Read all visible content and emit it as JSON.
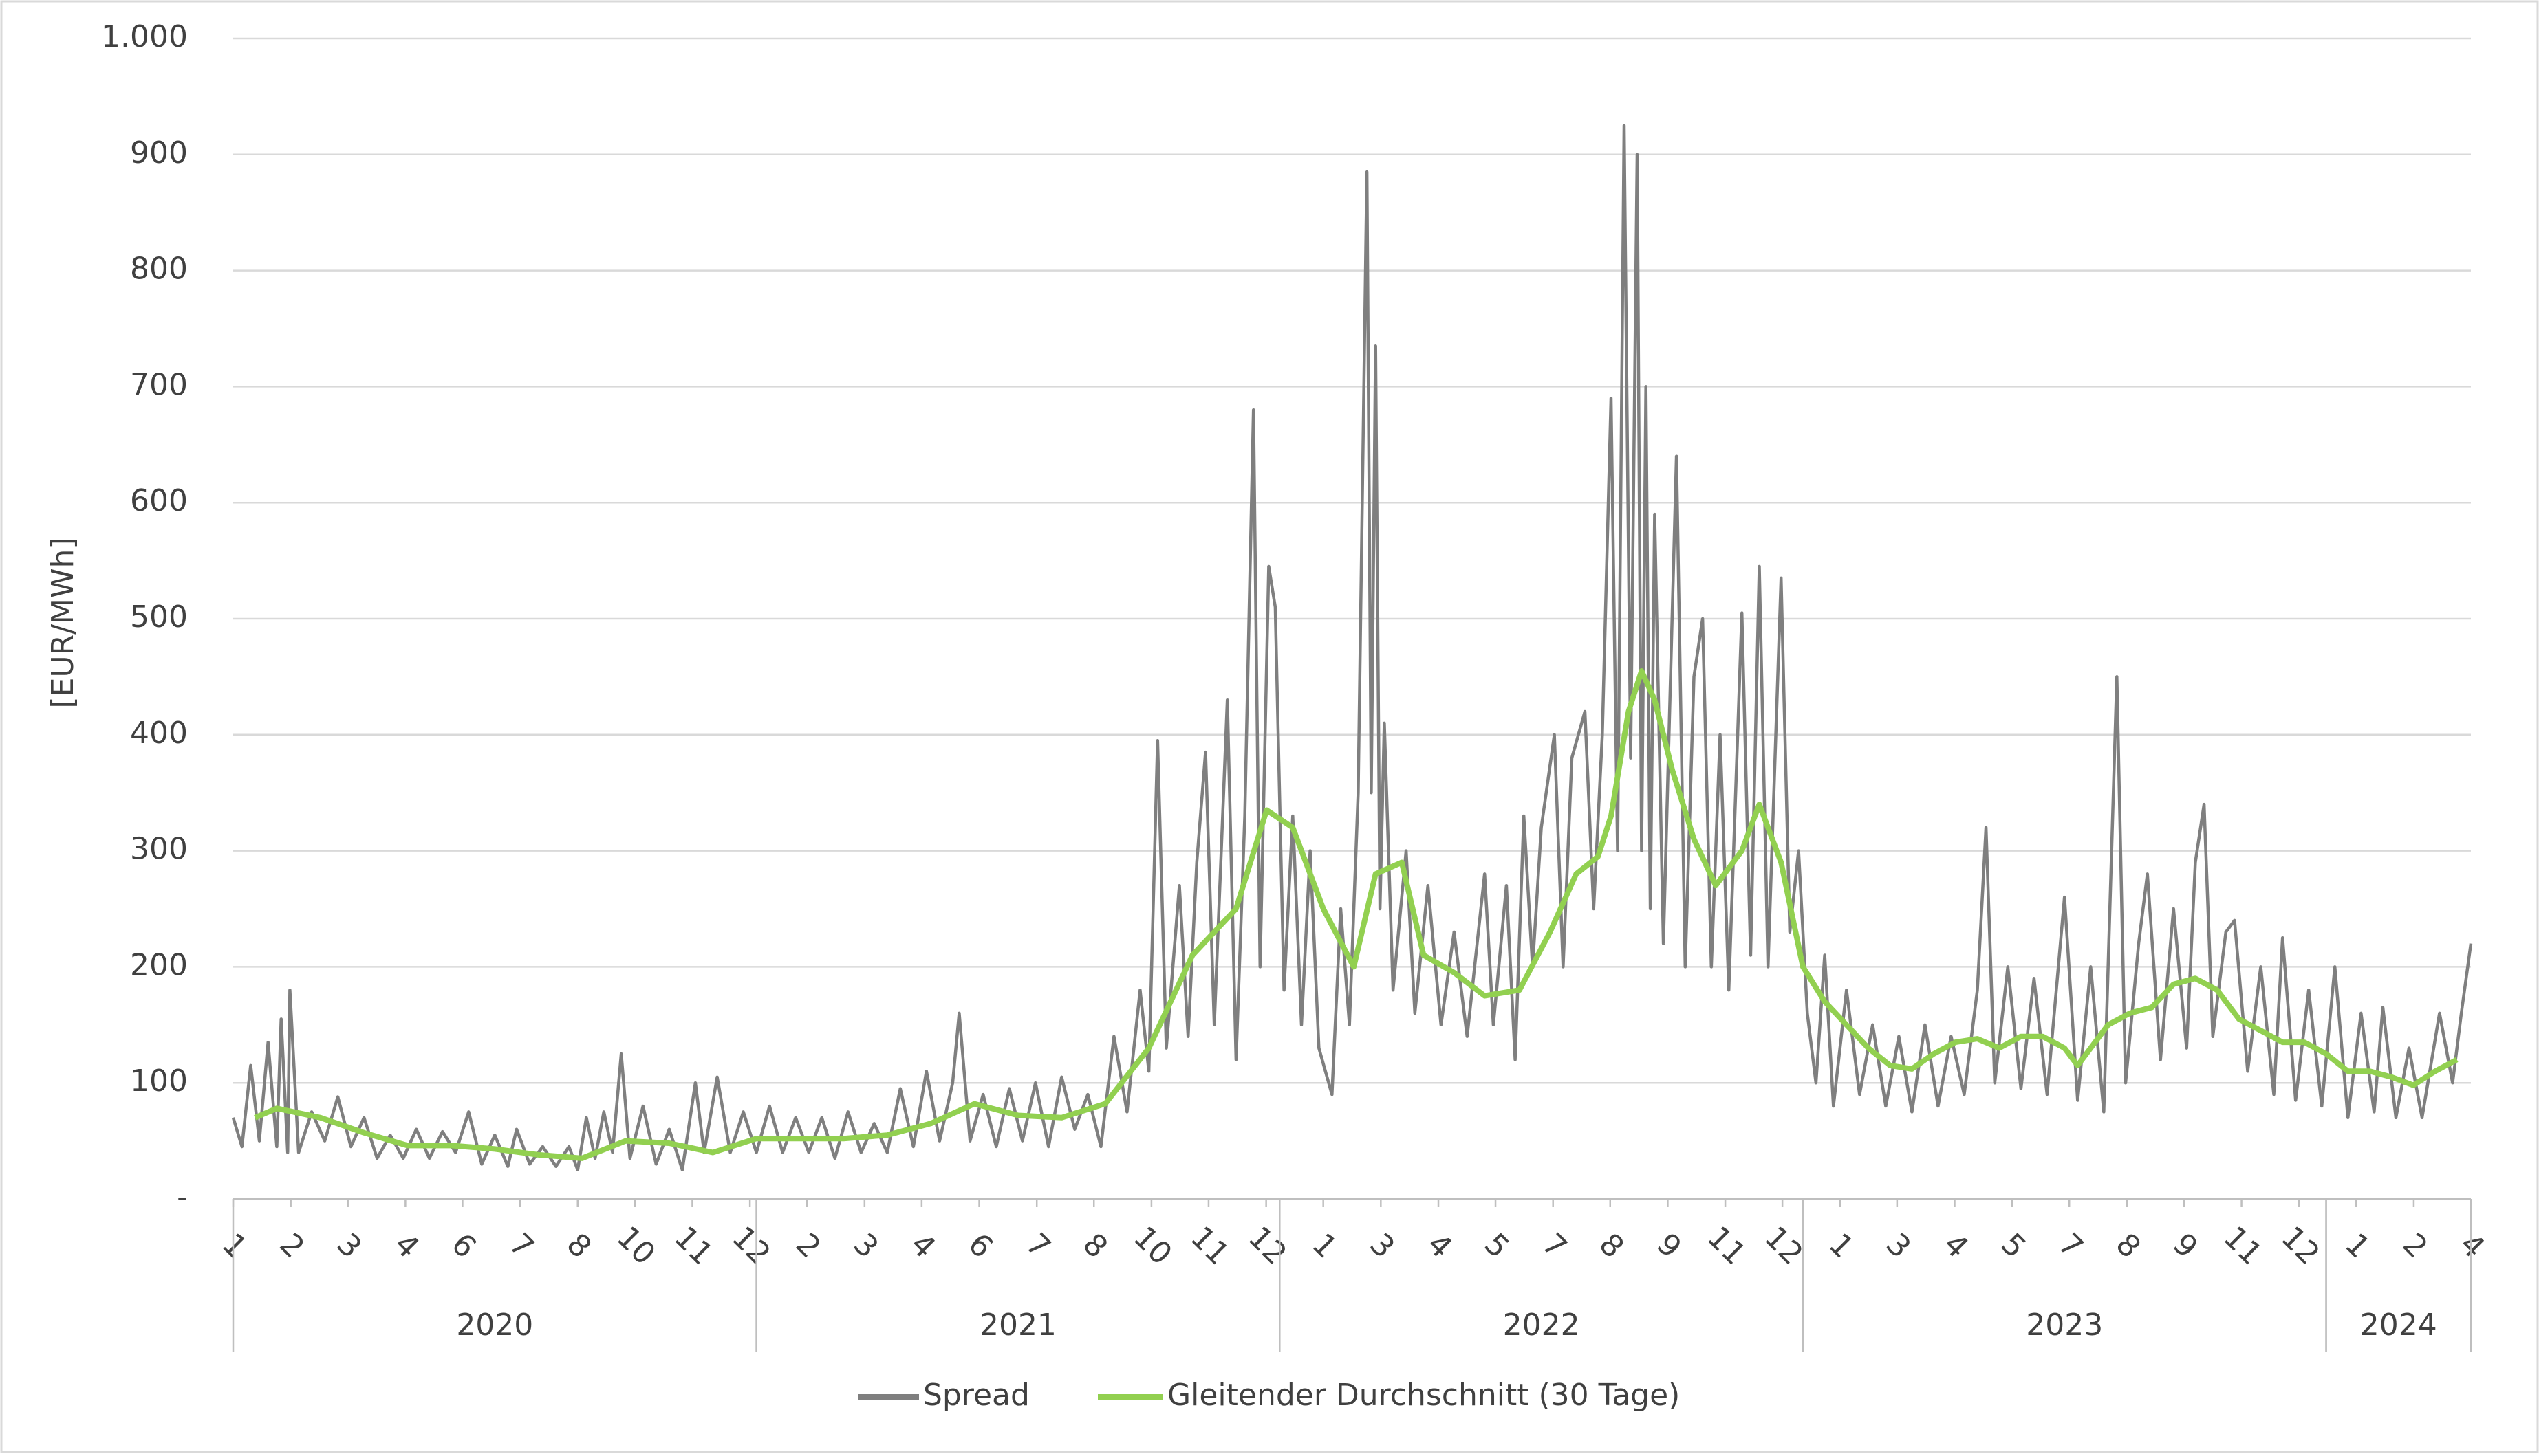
{
  "chart_data": {
    "type": "line",
    "y_label": "[EUR/MWh]",
    "ylim": [
      0,
      1000
    ],
    "yticks": [
      {
        "value": 0,
        "label": "-"
      },
      100,
      200,
      300,
      400,
      500,
      600,
      700,
      800,
      900,
      {
        "value": 1000,
        "label": "1.000"
      }
    ],
    "xlim": [
      0,
      51.32
    ],
    "xticks": [
      {
        "value": 0,
        "label": "1"
      },
      {
        "value": 1.32,
        "label": "2"
      },
      {
        "value": 2.63,
        "label": "3"
      },
      {
        "value": 3.95,
        "label": "4"
      },
      {
        "value": 5.26,
        "label": "6"
      },
      {
        "value": 6.58,
        "label": "7"
      },
      {
        "value": 7.9,
        "label": "8"
      },
      {
        "value": 9.21,
        "label": "10"
      },
      {
        "value": 10.53,
        "label": "11"
      },
      {
        "value": 11.85,
        "label": "12"
      },
      {
        "value": 13.16,
        "label": "2"
      },
      {
        "value": 14.48,
        "label": "3"
      },
      {
        "value": 15.79,
        "label": "4"
      },
      {
        "value": 17.11,
        "label": "6"
      },
      {
        "value": 18.43,
        "label": "7"
      },
      {
        "value": 19.74,
        "label": "8"
      },
      {
        "value": 21.06,
        "label": "10"
      },
      {
        "value": 22.37,
        "label": "11"
      },
      {
        "value": 23.69,
        "label": "12"
      },
      {
        "value": 25,
        "label": "1"
      },
      {
        "value": 26.32,
        "label": "3"
      },
      {
        "value": 27.64,
        "label": "4"
      },
      {
        "value": 28.95,
        "label": "5"
      },
      {
        "value": 30.27,
        "label": "7"
      },
      {
        "value": 31.58,
        "label": "8"
      },
      {
        "value": 32.9,
        "label": "9"
      },
      {
        "value": 34.22,
        "label": "11"
      },
      {
        "value": 35.53,
        "label": "12"
      },
      {
        "value": 36.85,
        "label": "1"
      },
      {
        "value": 38.16,
        "label": "3"
      },
      {
        "value": 39.48,
        "label": "4"
      },
      {
        "value": 40.8,
        "label": "5"
      },
      {
        "value": 42.11,
        "label": "7"
      },
      {
        "value": 43.43,
        "label": "8"
      },
      {
        "value": 44.74,
        "label": "9"
      },
      {
        "value": 46.06,
        "label": "11"
      },
      {
        "value": 47.38,
        "label": "12"
      },
      {
        "value": 48.69,
        "label": "1"
      },
      {
        "value": 50.01,
        "label": "2"
      },
      {
        "value": 51.32,
        "label": "4"
      }
    ],
    "x_groups": [
      {
        "label": "2020",
        "from": 0,
        "to": 12
      },
      {
        "label": "2021",
        "from": 12,
        "to": 24
      },
      {
        "label": "2022",
        "from": 24,
        "to": 36
      },
      {
        "label": "2023",
        "from": 36,
        "to": 48
      },
      {
        "label": "2024",
        "from": 48,
        "to": 51.32
      }
    ],
    "grid": true,
    "legend": "bottom",
    "series": [
      {
        "name": "Spread",
        "color": "#7f7f7f",
        "x": [
          0,
          0.2,
          0.4,
          0.6,
          0.8,
          1.0,
          1.1,
          1.25,
          1.3,
          1.5,
          1.8,
          2.1,
          2.4,
          2.7,
          3.0,
          3.3,
          3.6,
          3.9,
          4.2,
          4.5,
          4.8,
          5.1,
          5.4,
          5.7,
          6.0,
          6.3,
          6.5,
          6.8,
          7.1,
          7.4,
          7.7,
          7.9,
          8.1,
          8.3,
          8.5,
          8.7,
          8.9,
          9.1,
          9.4,
          9.7,
          10.0,
          10.3,
          10.6,
          10.8,
          11.1,
          11.4,
          11.7,
          12.0,
          12.3,
          12.6,
          12.9,
          13.2,
          13.5,
          13.8,
          14.1,
          14.4,
          14.7,
          15.0,
          15.3,
          15.6,
          15.9,
          16.2,
          16.5,
          16.65,
          16.9,
          17.2,
          17.5,
          17.8,
          18.1,
          18.4,
          18.7,
          19.0,
          19.3,
          19.6,
          19.9,
          20.2,
          20.5,
          20.8,
          21.0,
          21.2,
          21.4,
          21.7,
          21.9,
          22.1,
          22.3,
          22.5,
          22.8,
          23.0,
          23.2,
          23.4,
          23.55,
          23.75,
          23.9,
          24.1,
          24.3,
          24.5,
          24.7,
          24.9,
          25.2,
          25.4,
          25.6,
          25.8,
          26.0,
          26.1,
          26.2,
          26.3,
          26.4,
          26.6,
          26.9,
          27.1,
          27.4,
          27.7,
          28.0,
          28.3,
          28.7,
          28.9,
          29.2,
          29.4,
          29.6,
          29.8,
          30.0,
          30.3,
          30.5,
          30.7,
          31.0,
          31.2,
          31.4,
          31.6,
          31.75,
          31.9,
          32.05,
          32.2,
          32.3,
          32.4,
          32.5,
          32.6,
          32.8,
          33.1,
          33.3,
          33.5,
          33.7,
          33.9,
          34.1,
          34.3,
          34.6,
          34.8,
          35.0,
          35.2,
          35.5,
          35.7,
          35.9,
          36.1,
          36.3,
          36.5,
          36.7,
          37.0,
          37.3,
          37.6,
          37.9,
          38.2,
          38.5,
          38.8,
          39.1,
          39.4,
          39.7,
          40.0,
          40.2,
          40.4,
          40.7,
          41.0,
          41.3,
          41.6,
          42.0,
          42.3,
          42.6,
          42.9,
          43.2,
          43.4,
          43.7,
          43.9,
          44.2,
          44.5,
          44.8,
          45.0,
          45.2,
          45.4,
          45.7,
          45.9,
          46.2,
          46.5,
          46.8,
          47.0,
          47.3,
          47.6,
          47.9,
          48.2,
          48.5,
          48.8,
          49.1,
          49.3,
          49.6,
          49.9,
          50.2,
          50.6,
          50.9,
          51.1,
          51.32
        ],
        "values": [
          70,
          45,
          115,
          50,
          135,
          45,
          155,
          40,
          180,
          40,
          75,
          50,
          88,
          45,
          70,
          35,
          55,
          35,
          60,
          35,
          58,
          40,
          75,
          30,
          55,
          28,
          60,
          30,
          45,
          28,
          45,
          25,
          70,
          35,
          75,
          40,
          125,
          35,
          80,
          30,
          60,
          25,
          100,
          40,
          105,
          40,
          75,
          40,
          80,
          40,
          70,
          40,
          70,
          35,
          75,
          40,
          65,
          40,
          95,
          45,
          110,
          50,
          100,
          160,
          50,
          90,
          45,
          95,
          50,
          100,
          45,
          105,
          60,
          90,
          45,
          140,
          75,
          180,
          110,
          395,
          130,
          270,
          140,
          290,
          385,
          150,
          430,
          120,
          330,
          680,
          200,
          545,
          510,
          180,
          330,
          150,
          300,
          130,
          90,
          250,
          150,
          350,
          885,
          350,
          735,
          250,
          410,
          180,
          300,
          160,
          270,
          150,
          230,
          140,
          280,
          150,
          270,
          120,
          330,
          200,
          320,
          400,
          200,
          380,
          420,
          250,
          400,
          690,
          300,
          925,
          380,
          900,
          300,
          700,
          250,
          590,
          220,
          640,
          200,
          450,
          500,
          200,
          400,
          180,
          505,
          210,
          545,
          200,
          535,
          230,
          300,
          160,
          100,
          210,
          80,
          180,
          90,
          150,
          80,
          140,
          75,
          150,
          80,
          140,
          90,
          180,
          320,
          100,
          200,
          95,
          190,
          90,
          260,
          85,
          200,
          75,
          450,
          100,
          220,
          280,
          120,
          250,
          130,
          290,
          340,
          140,
          230,
          240,
          110,
          200,
          90,
          225,
          85,
          180,
          80,
          200,
          70,
          160,
          75,
          165,
          70,
          130,
          70,
          160,
          100,
          160,
          220
        ]
      },
      {
        "name": "Gleitender Durchschnitt (30 Tage)",
        "color": "#92d050",
        "x": [
          0.5,
          1,
          2,
          3,
          4,
          5,
          6,
          7,
          8,
          9,
          10,
          11,
          12,
          13,
          14,
          15,
          16,
          17,
          18,
          19,
          20,
          21,
          22,
          23,
          23.7,
          24.3,
          25,
          25.7,
          26.2,
          26.8,
          27.3,
          28,
          28.7,
          29.5,
          30.2,
          30.8,
          31.3,
          31.6,
          32,
          32.3,
          32.6,
          33,
          33.5,
          34,
          34.6,
          35,
          35.5,
          36,
          36.5,
          37,
          37.5,
          38,
          38.5,
          39,
          39.5,
          40,
          40.5,
          41,
          41.5,
          42,
          42.3,
          43,
          43.5,
          44,
          44.5,
          45,
          45.5,
          46,
          46.5,
          47,
          47.5,
          48,
          48.5,
          49,
          49.5,
          50,
          50.5,
          51
        ],
        "values": [
          70,
          78,
          70,
          57,
          46,
          46,
          43,
          38,
          35,
          50,
          48,
          40,
          52,
          52,
          52,
          55,
          65,
          82,
          72,
          70,
          82,
          130,
          210,
          250,
          335,
          320,
          250,
          200,
          280,
          290,
          210,
          195,
          175,
          180,
          230,
          280,
          295,
          330,
          420,
          455,
          430,
          370,
          310,
          270,
          300,
          340,
          290,
          200,
          170,
          150,
          130,
          115,
          112,
          125,
          135,
          138,
          130,
          140,
          140,
          130,
          115,
          150,
          160,
          165,
          185,
          190,
          180,
          155,
          145,
          135,
          135,
          125,
          110,
          110,
          105,
          98,
          110,
          120
        ]
      }
    ]
  }
}
